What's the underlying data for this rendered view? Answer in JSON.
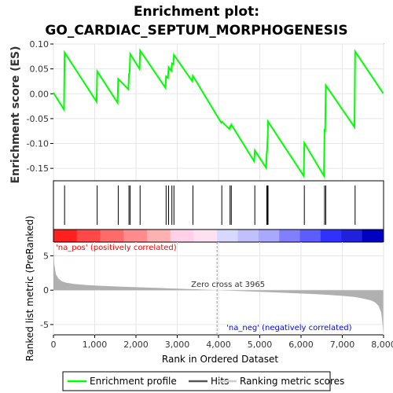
{
  "chart_data": {
    "type": "line",
    "title_line1": "Enrichment plot:",
    "title_line2": "GO_CARDIAC_SEPTUM_MORPHOGENESIS",
    "es_ylabel": "Enrichment score (ES)",
    "rank_ylabel": "Ranked list metric (PreRanked)",
    "xlabel": "Rank in Ordered Dataset",
    "xlim": [
      0,
      8000
    ],
    "es_ylim": [
      -0.175,
      0.1
    ],
    "rank_ylim": [
      -6.5,
      7
    ],
    "x_ticks": [
      "0",
      "1,000",
      "2,000",
      "3,000",
      "4,000",
      "5,000",
      "6,000",
      "7,000",
      "8,000"
    ],
    "x_tick_values": [
      0,
      1000,
      2000,
      3000,
      4000,
      5000,
      6000,
      7000,
      8000
    ],
    "es_ticks": [
      "0.10",
      "0.05",
      "0.00",
      "-0.05",
      "-0.10",
      "-0.15"
    ],
    "es_tick_values": [
      0.1,
      0.05,
      0.0,
      -0.05,
      -0.1,
      -0.15
    ],
    "rank_ticks": [
      "5",
      "0",
      "-5"
    ],
    "rank_tick_values": [
      5,
      0,
      -5
    ],
    "zero_cross_label": "Zero cross at 3965",
    "zero_cross": 3965,
    "pos_label": "'na_pos' (positively correlated)",
    "neg_label": "'na_neg' (negatively correlated)",
    "hits": [
      270,
      1060,
      1570,
      1830,
      1860,
      2100,
      2730,
      2790,
      2870,
      2920,
      3380,
      4080,
      4280,
      4310,
      4880,
      5170,
      5190,
      5200,
      6080,
      6570,
      6600,
      7310
    ],
    "es_curve": {
      "x": [
        0,
        255,
        270,
        1045,
        1060,
        1555,
        1570,
        1815,
        1830,
        1845,
        1860,
        2085,
        2100,
        2715,
        2730,
        2775,
        2790,
        2855,
        2870,
        2905,
        2920,
        3365,
        3380,
        4065,
        4080,
        4265,
        4280,
        4295,
        4310,
        4865,
        4880,
        5155,
        5170,
        5175,
        5190,
        5195,
        5200,
        6065,
        6080,
        6555,
        6570,
        6585,
        6600,
        7295,
        7310,
        7990
      ],
      "y": [
        0.002,
        -0.032,
        0.083,
        -0.016,
        0.045,
        -0.018,
        0.03,
        0.009,
        0.04,
        0.042,
        0.08,
        0.05,
        0.087,
        0.012,
        0.035,
        0.032,
        0.053,
        0.046,
        0.061,
        0.059,
        0.078,
        0.025,
        0.036,
        -0.058,
        -0.056,
        -0.071,
        -0.066,
        -0.067,
        -0.062,
        -0.136,
        -0.114,
        -0.149,
        -0.118,
        -0.118,
        -0.088,
        -0.088,
        -0.056,
        -0.165,
        -0.099,
        -0.165,
        -0.073,
        -0.074,
        0.017,
        -0.067,
        0.085,
        0.001
      ]
    },
    "ranked_metric": {
      "x": [
        0,
        20,
        60,
        120,
        200,
        300,
        500,
        800,
        1200,
        1600,
        2000,
        2500,
        3000,
        3500,
        3965,
        4500,
        5000,
        5500,
        6000,
        6500,
        7000,
        7300,
        7500,
        7700,
        7800,
        7880,
        7940,
        7970,
        7990
      ],
      "y": [
        6.8,
        3.8,
        2.3,
        1.7,
        1.3,
        1.1,
        0.9,
        0.75,
        0.62,
        0.52,
        0.43,
        0.33,
        0.23,
        0.12,
        0.0,
        -0.12,
        -0.24,
        -0.36,
        -0.48,
        -0.62,
        -0.82,
        -1.0,
        -1.2,
        -1.5,
        -1.8,
        -2.3,
        -3.2,
        -4.6,
        -6.3
      ]
    },
    "heatbar_colors": [
      "#ff2020",
      "#ff4848",
      "#ff6a6a",
      "#ff8c8c",
      "#ffb0b0",
      "#ffd0e8",
      "#ffe0f0",
      "#d8d8ff",
      "#c0c0ff",
      "#a8a8ff",
      "#8080ff",
      "#5c5cff",
      "#3030ff",
      "#2020dd",
      "#0000c0"
    ],
    "colors": {
      "es_line": "#00ff00",
      "hit_line": "#000000",
      "metric_fill": "#b0b0b0",
      "pos_text": "#ff0000",
      "neg_text": "#0000ff"
    }
  },
  "legend": {
    "items": [
      {
        "label": "Enrichment profile",
        "icon": "green-line"
      },
      {
        "label": "Hits",
        "icon": "black-line"
      },
      {
        "label": "Ranking metric scores",
        "icon": "gray-line"
      }
    ]
  }
}
